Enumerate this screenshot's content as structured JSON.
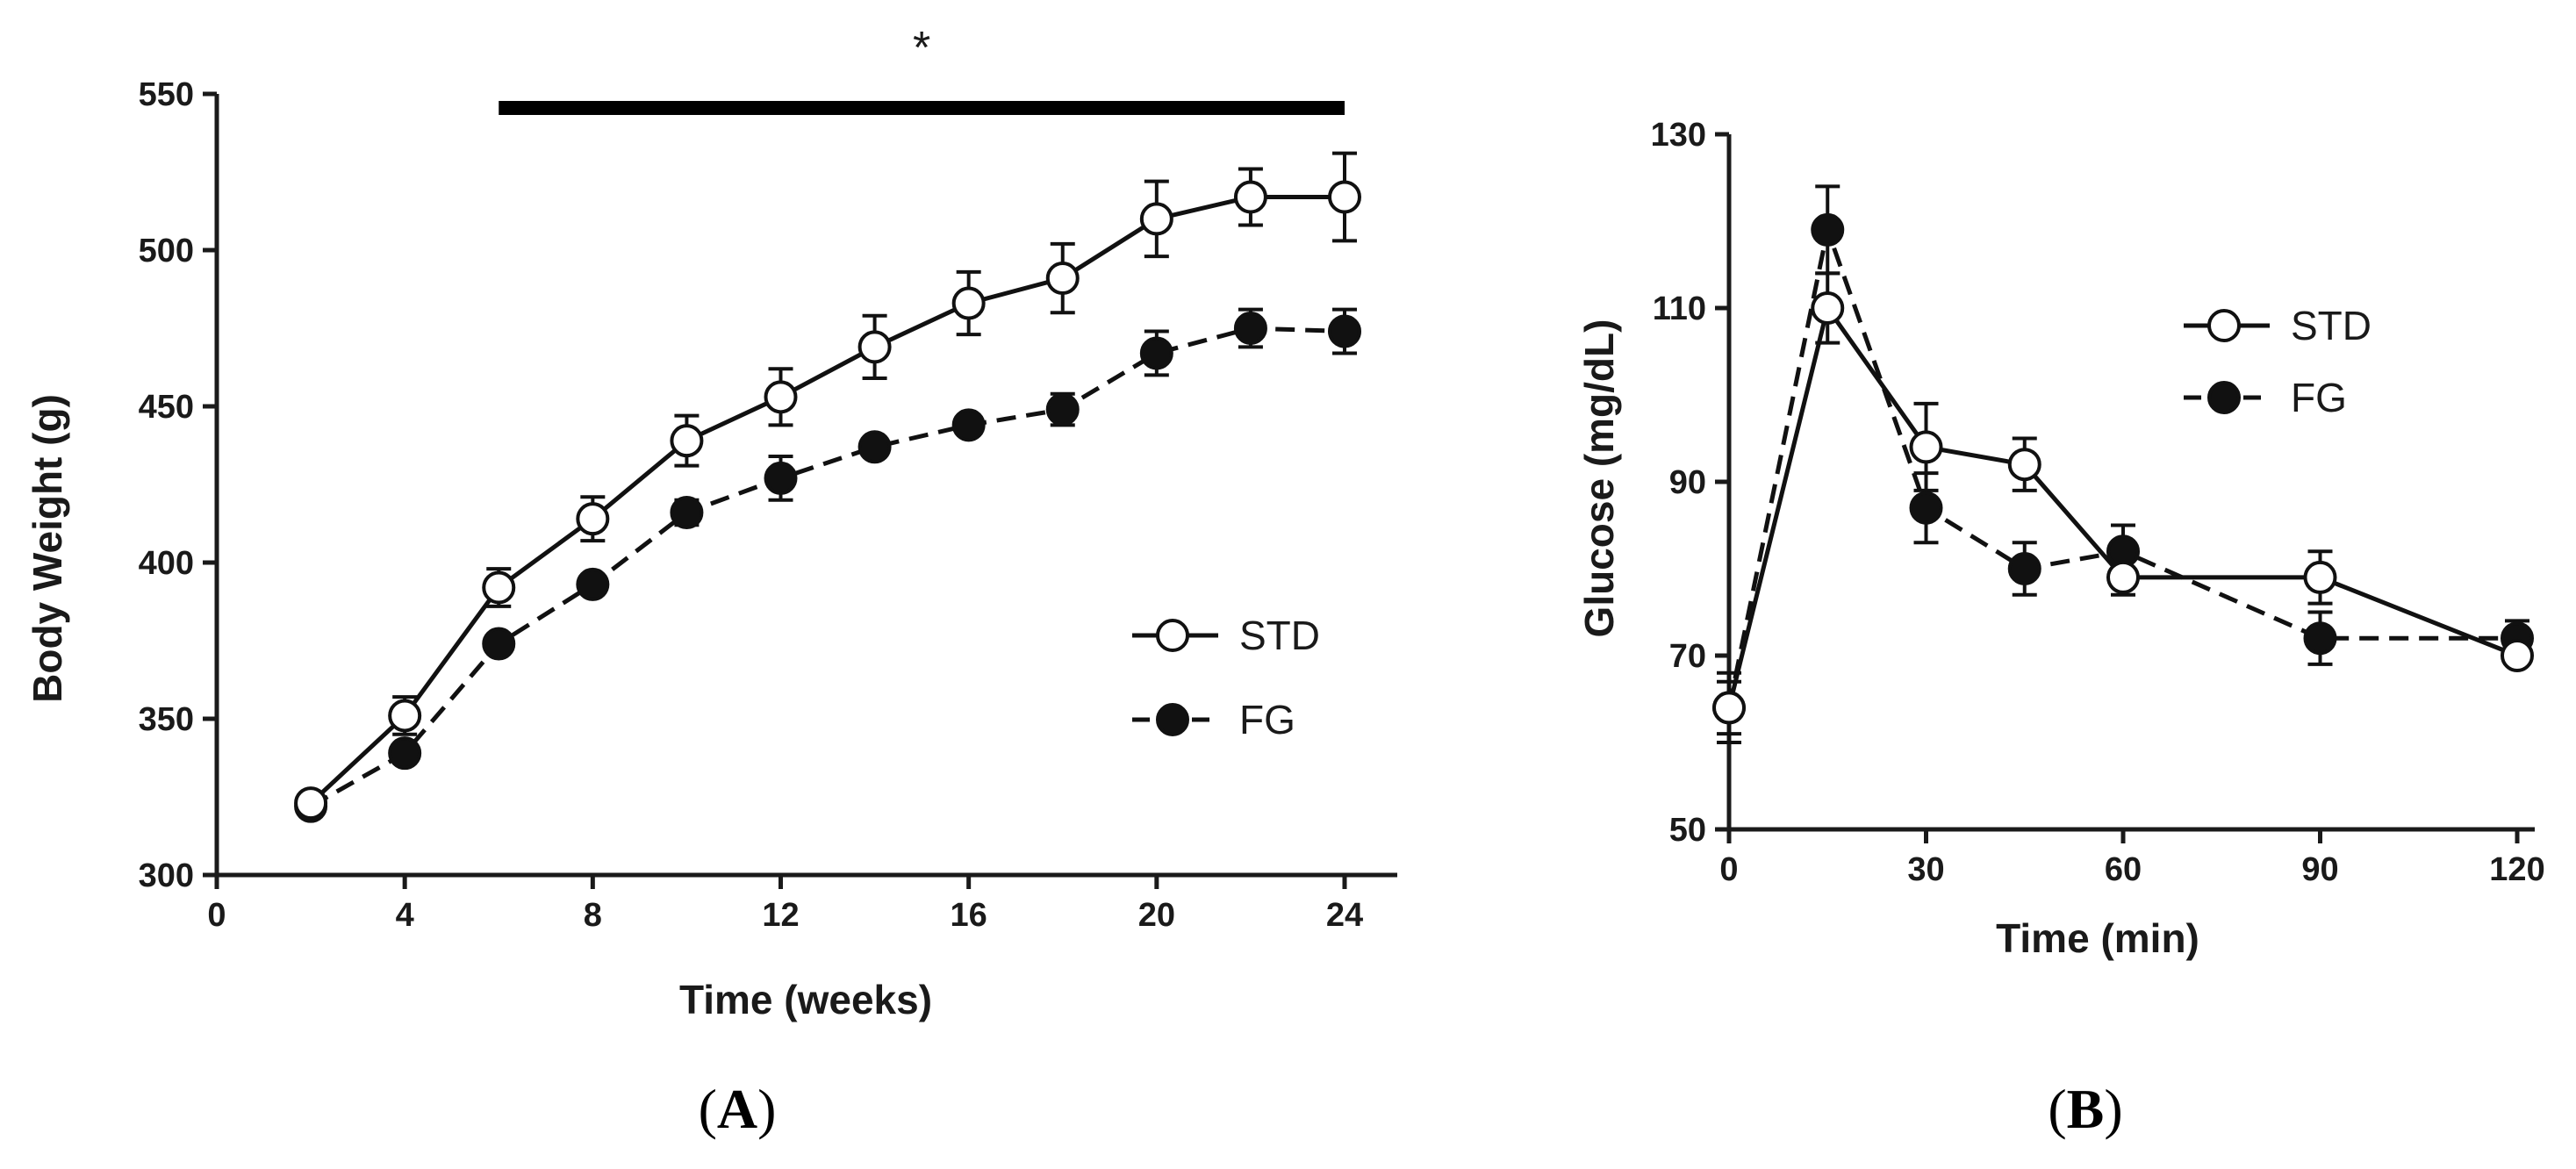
{
  "chart_data": [
    {
      "type": "line",
      "panel_label": "A",
      "xlabel": "Time (weeks)",
      "ylabel": "Body Weight (g)",
      "xlim": [
        0,
        24
      ],
      "ylim": [
        300,
        550
      ],
      "xticks": [
        0,
        4,
        8,
        12,
        16,
        20,
        24
      ],
      "yticks": [
        300,
        350,
        400,
        450,
        500,
        550
      ],
      "grid": false,
      "legend_position": "bottom-right",
      "significance": {
        "label": "*",
        "x_start": 6,
        "x_end": 24
      },
      "series": [
        {
          "name": "STD",
          "marker": "open-circle",
          "linestyle": "solid",
          "x": [
            2,
            4,
            6,
            8,
            10,
            12,
            14,
            16,
            18,
            20,
            22,
            24
          ],
          "values": [
            323,
            351,
            392,
            414,
            439,
            453,
            469,
            483,
            491,
            510,
            517,
            517
          ],
          "error": [
            2,
            6,
            6,
            7,
            8,
            9,
            10,
            10,
            11,
            12,
            9,
            14
          ]
        },
        {
          "name": "FG",
          "marker": "filled-circle",
          "linestyle": "dashed",
          "x": [
            2,
            4,
            6,
            8,
            10,
            12,
            14,
            16,
            18,
            20,
            22,
            24
          ],
          "values": [
            322,
            339,
            374,
            393,
            416,
            427,
            437,
            444,
            449,
            467,
            475,
            474
          ],
          "error": [
            2,
            3,
            3,
            3,
            4,
            7,
            3,
            3,
            5,
            7,
            6,
            7
          ]
        }
      ]
    },
    {
      "type": "line",
      "panel_label": "B",
      "xlabel": "Time (min)",
      "ylabel": "Glucose (mg/dL)",
      "xlim": [
        0,
        120
      ],
      "ylim": [
        50,
        130
      ],
      "xticks": [
        0,
        30,
        60,
        90,
        120
      ],
      "yticks": [
        50,
        70,
        90,
        110,
        130
      ],
      "grid": false,
      "legend_position": "top-right",
      "series": [
        {
          "name": "STD",
          "marker": "open-circle",
          "linestyle": "solid",
          "x": [
            0,
            15,
            30,
            45,
            60,
            90,
            120
          ],
          "values": [
            64,
            110,
            94,
            92,
            79,
            79,
            70
          ],
          "error": [
            3,
            4,
            5,
            3,
            2,
            3,
            1
          ]
        },
        {
          "name": "FG",
          "marker": "filled-circle",
          "linestyle": "dashed",
          "x": [
            0,
            15,
            30,
            45,
            60,
            90,
            120
          ],
          "values": [
            64,
            119,
            87,
            80,
            82,
            72,
            72
          ],
          "error": [
            4,
            5,
            4,
            3,
            3,
            3,
            2
          ]
        }
      ]
    }
  ]
}
